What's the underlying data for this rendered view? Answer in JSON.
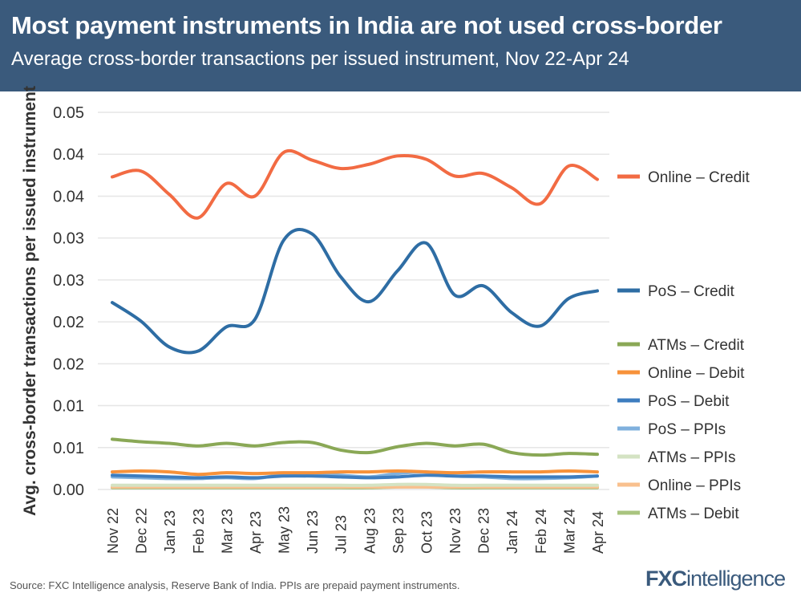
{
  "header": {
    "title": "Most payment instruments in India are not used cross-border",
    "subtitle": "Average cross-border transactions per issued instrument, Nov 22-Apr 24"
  },
  "footer": {
    "source": "Source: FXC Intelligence analysis, Reserve Bank of India. PPIs are prepaid payment instruments.",
    "logo_text": "FXCintelligence"
  },
  "chart_data": {
    "type": "line",
    "title": "",
    "xlabel": "",
    "ylabel": "Avg. cross-border transactions per issued instrument",
    "ylim": [
      0,
      0.045
    ],
    "yticks": [
      0,
      0.005,
      0.01,
      0.015,
      0.02,
      0.025,
      0.03,
      0.035,
      0.04,
      0.045
    ],
    "ytick_labels": [
      "0.00",
      "0.01",
      "0.01",
      "0.02",
      "0.02",
      "0.03",
      "0.03",
      "0.04",
      "0.04",
      "0.05"
    ],
    "grid": true,
    "legend": "right",
    "categories": [
      "Nov 22",
      "Dec 22",
      "Jan 23",
      "Feb 23",
      "Mar 23",
      "Apr 23",
      "May 23",
      "Jun 23",
      "Jul 23",
      "Aug 23",
      "Sep 23",
      "Oct 23",
      "Nov 23",
      "Dec 23",
      "Jan 24",
      "Feb 24",
      "Mar 24",
      "Apr 24"
    ],
    "series": [
      {
        "name": "Online – Credit",
        "color": "#f26b43",
        "values": [
          0.0373,
          0.038,
          0.0352,
          0.0324,
          0.0365,
          0.035,
          0.0402,
          0.0393,
          0.0383,
          0.0388,
          0.0398,
          0.0394,
          0.0374,
          0.0377,
          0.036,
          0.0341,
          0.0386,
          0.037
        ]
      },
      {
        "name": "PoS – Credit",
        "color": "#2e6da4",
        "values": [
          0.0223,
          0.0201,
          0.017,
          0.0165,
          0.0194,
          0.0203,
          0.0297,
          0.0305,
          0.0254,
          0.0224,
          0.0261,
          0.0294,
          0.0232,
          0.0243,
          0.0211,
          0.0195,
          0.0228,
          0.0237
        ]
      },
      {
        "name": "ATMs – Credit",
        "color": "#8aa856",
        "values": [
          0.006,
          0.0057,
          0.0055,
          0.0052,
          0.0055,
          0.0052,
          0.0056,
          0.0056,
          0.0047,
          0.0044,
          0.0051,
          0.0055,
          0.0052,
          0.0054,
          0.0044,
          0.0041,
          0.0043,
          0.0042
        ]
      },
      {
        "name": "Online – Debit",
        "color": "#f7923a",
        "values": [
          0.0021,
          0.0022,
          0.0021,
          0.0018,
          0.002,
          0.0019,
          0.002,
          0.002,
          0.0021,
          0.0021,
          0.0022,
          0.0021,
          0.002,
          0.0021,
          0.0021,
          0.0021,
          0.0022,
          0.0021
        ]
      },
      {
        "name": "PoS – Debit",
        "color": "#3d7dbf",
        "values": [
          0.0017,
          0.0016,
          0.0015,
          0.0014,
          0.0015,
          0.0014,
          0.0016,
          0.0016,
          0.0015,
          0.0014,
          0.0015,
          0.0017,
          0.0016,
          0.0016,
          0.0015,
          0.0015,
          0.0015,
          0.0016
        ]
      },
      {
        "name": "PoS – PPIs",
        "color": "#7fb0dd",
        "values": [
          0.0015,
          0.0014,
          0.0013,
          0.0013,
          0.0014,
          0.0013,
          0.0018,
          0.0019,
          0.0017,
          0.0015,
          0.0019,
          0.0021,
          0.0016,
          0.0015,
          0.0013,
          0.0013,
          0.0014,
          0.0016
        ]
      },
      {
        "name": "ATMs – PPIs",
        "color": "#d4e3c3",
        "values": [
          0.0005,
          0.0005,
          0.0005,
          0.0005,
          0.0005,
          0.0005,
          0.0005,
          0.0005,
          0.0005,
          0.0005,
          0.0006,
          0.0006,
          0.0005,
          0.0005,
          0.0005,
          0.0005,
          0.0005,
          0.0005
        ]
      },
      {
        "name": "Online – PPIs",
        "color": "#f9c08e",
        "values": [
          0.0003,
          0.0003,
          0.0003,
          0.0003,
          0.0003,
          0.0003,
          0.0003,
          0.0003,
          0.0003,
          0.0003,
          0.0003,
          0.0003,
          0.0003,
          0.0003,
          0.0003,
          0.0003,
          0.0003,
          0.0003
        ]
      },
      {
        "name": "ATMs – Debit",
        "color": "#a9c47f",
        "values": [
          0.0002,
          0.0002,
          0.0002,
          0.0002,
          0.0002,
          0.0002,
          0.0002,
          0.0002,
          0.0002,
          0.0002,
          0.0003,
          0.0003,
          0.0002,
          0.0002,
          0.0002,
          0.0002,
          0.0002,
          0.0002
        ]
      }
    ]
  }
}
